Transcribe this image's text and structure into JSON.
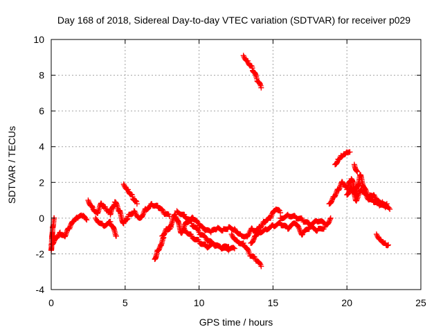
{
  "chart_data": {
    "type": "scatter",
    "title": "Day 168 of 2018, Sidereal Day-to-day VTEC variation (SDTVAR) for receiver p029",
    "xlabel": "GPS time / hours",
    "ylabel": "SDTVAR / TECUs",
    "xlim": [
      0,
      25
    ],
    "ylim": [
      -4,
      10
    ],
    "xticks": [
      0,
      5,
      10,
      15,
      20,
      25
    ],
    "yticks": [
      -4,
      -2,
      0,
      2,
      4,
      6,
      8,
      10
    ],
    "grid": true,
    "marker": "plus",
    "series": [
      {
        "name": "SDTVAR",
        "color": "#ff0000",
        "tracks": [
          {
            "x": [
              0.0,
              0.3,
              0.6,
              0.9,
              1.2,
              1.5,
              1.8,
              2.1,
              2.4
            ],
            "y": [
              -1.5,
              -1.1,
              -0.8,
              -1.0,
              -0.6,
              -0.2,
              0.0,
              0.1,
              -0.1
            ]
          },
          {
            "x": [
              0.0,
              0.1,
              0.2
            ],
            "y": [
              -1.8,
              -0.5,
              0.0
            ]
          },
          {
            "x": [
              2.5,
              2.8,
              3.1,
              3.4,
              3.7,
              4.0,
              4.3,
              4.6,
              4.9,
              5.2,
              5.6,
              6.0,
              6.4,
              6.8,
              7.2,
              7.6,
              8.0
            ],
            "y": [
              1.0,
              0.6,
              0.3,
              0.8,
              0.5,
              0.2,
              0.9,
              0.4,
              -0.3,
              0.1,
              0.4,
              0.0,
              0.5,
              0.8,
              0.7,
              0.3,
              0.1
            ]
          },
          {
            "x": [
              3.0,
              3.5,
              4.0,
              4.4
            ],
            "y": [
              0.0,
              -0.4,
              -0.2,
              -1.0
            ]
          },
          {
            "x": [
              4.9,
              5.2,
              5.5,
              5.8
            ],
            "y": [
              1.9,
              1.6,
              1.2,
              0.8
            ]
          },
          {
            "x": [
              7.0,
              7.2,
              7.4,
              7.6
            ],
            "y": [
              -2.3,
              -1.8,
              -1.5,
              -1.1
            ]
          },
          {
            "x": [
              7.5,
              7.8,
              8.1
            ],
            "y": [
              -1.0,
              -0.6,
              -0.5
            ]
          },
          {
            "x": [
              8.0,
              8.4,
              8.8,
              9.2,
              9.6,
              10.0,
              10.4,
              10.8,
              11.2,
              11.6,
              12.0,
              12.4,
              12.8,
              13.2,
              13.6,
              14.0
            ],
            "y": [
              -0.5,
              0.2,
              -0.8,
              -0.2,
              0.0,
              -0.4,
              -0.7,
              -0.8,
              -0.6,
              -0.7,
              -0.5,
              -0.6,
              -0.9,
              -1.0,
              -0.6,
              -0.8
            ]
          },
          {
            "x": [
              8.5,
              9.0,
              9.5,
              10.0,
              10.5,
              11.0,
              11.5,
              12.0
            ],
            "y": [
              0.4,
              0.2,
              -0.3,
              -0.8,
              -1.2,
              -1.5,
              -1.7,
              -1.6
            ]
          },
          {
            "x": [
              9.0,
              9.5,
              10.0,
              10.5,
              11.0,
              11.5,
              12.0,
              12.4
            ],
            "y": [
              -0.6,
              -1.0,
              -1.3,
              -1.6,
              -1.5,
              -1.7,
              -1.8,
              -1.7
            ]
          },
          {
            "x": [
              12.2,
              12.6,
              13.0,
              13.4,
              13.8,
              14.2
            ],
            "y": [
              -0.9,
              -1.3,
              -1.4,
              -2.0,
              -2.3,
              -2.7
            ]
          },
          {
            "x": [
              13.5,
              13.8,
              14.1,
              14.4,
              14.8,
              15.2,
              15.5
            ],
            "y": [
              -1.4,
              -1.0,
              -0.5,
              -0.2,
              0.0,
              0.5,
              0.3
            ]
          },
          {
            "x": [
              14.0,
              14.5,
              15.0,
              15.5,
              16.0,
              16.5,
              17.0,
              17.5,
              18.0,
              18.5,
              18.9
            ],
            "y": [
              -0.8,
              -0.6,
              -0.4,
              -0.3,
              -0.6,
              -0.3,
              -0.9,
              -0.5,
              -0.7,
              -0.5,
              0.0
            ]
          },
          {
            "x": [
              15.5,
              16.0,
              16.5,
              17.0,
              17.5,
              18.0,
              18.5
            ],
            "y": [
              0.0,
              0.2,
              0.1,
              -0.1,
              -0.4,
              -0.2,
              -0.3
            ]
          },
          {
            "x": [
              13.0,
              13.3,
              13.6,
              13.9,
              14.2
            ],
            "y": [
              9.1,
              8.8,
              8.4,
              7.8,
              7.3
            ]
          },
          {
            "x": [
              18.8,
              19.1,
              19.4,
              19.7,
              20.0,
              20.3,
              20.6,
              20.9,
              21.2,
              21.5,
              21.8,
              22.1,
              22.4,
              22.7
            ],
            "y": [
              0.8,
              1.2,
              1.6,
              2.0,
              1.6,
              2.2,
              1.4,
              2.4,
              1.6,
              1.2,
              1.3,
              1.0,
              0.9,
              0.8
            ]
          },
          {
            "x": [
              20.0,
              20.3,
              20.6,
              21.0,
              21.4,
              21.8,
              22.2,
              22.6,
              22.9
            ],
            "y": [
              1.3,
              1.8,
              1.0,
              1.6,
              1.1,
              0.9,
              0.7,
              0.6,
              0.5
            ]
          },
          {
            "x": [
              19.2,
              19.4,
              19.6,
              19.8,
              20.0,
              20.2
            ],
            "y": [
              3.0,
              3.3,
              3.5,
              3.6,
              3.7,
              3.7
            ]
          },
          {
            "x": [
              20.5,
              20.7
            ],
            "y": [
              3.0,
              2.6
            ]
          },
          {
            "x": [
              22.0,
              22.3,
              22.6,
              22.8
            ],
            "y": [
              -0.9,
              -1.2,
              -1.4,
              -1.5
            ]
          }
        ]
      }
    ]
  }
}
